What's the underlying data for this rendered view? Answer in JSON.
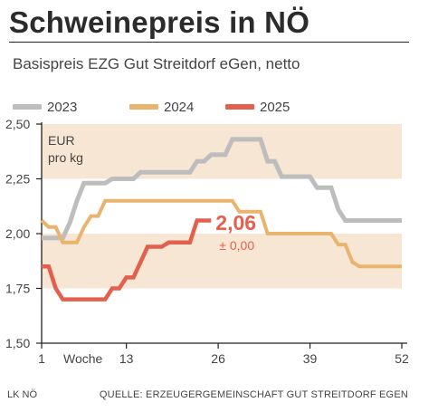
{
  "header": {
    "title": "Schweinepreis in NÖ",
    "subtitle": "Basispreis EZG Gut Streitdorf eGen, netto"
  },
  "footer": {
    "left": "LK NÖ",
    "right": "QUELLE: ERZEUGERGEMEINSCHAFT GUT STREITDORF EGEN"
  },
  "colors": {
    "band": "#f7e6d3",
    "series_2023": "#bdbdbd",
    "series_2024": "#e8b46e",
    "series_2025": "#e4604e",
    "axis": "#222222",
    "text": "#444444"
  },
  "chart_data": {
    "type": "line",
    "unit_label_line1": "EUR",
    "unit_label_line2": "pro kg",
    "xlabel": "Woche",
    "xlim": [
      1,
      52
    ],
    "ylim": [
      1.5,
      2.5
    ],
    "x_ticks": [
      1,
      13,
      26,
      39,
      52
    ],
    "x_tick_labels": [
      "1",
      "13",
      "26",
      "39",
      "52"
    ],
    "y_ticks": [
      1.5,
      1.75,
      2.0,
      2.25,
      2.5
    ],
    "y_tick_labels": [
      "1,50",
      "1,75",
      "2,00",
      "2,25",
      "2,50"
    ],
    "bands": [
      [
        2.25,
        2.5
      ],
      [
        1.75,
        2.0
      ]
    ],
    "legend_position": "top",
    "series": [
      {
        "name": "2023",
        "color": "#bdbdbd",
        "points": [
          [
            1,
            1.98
          ],
          [
            3,
            1.98
          ],
          [
            4,
            1.98
          ],
          [
            5,
            2.05
          ],
          [
            6,
            2.15
          ],
          [
            7,
            2.23
          ],
          [
            10,
            2.23
          ],
          [
            11,
            2.25
          ],
          [
            14,
            2.25
          ],
          [
            15,
            2.28
          ],
          [
            22,
            2.28
          ],
          [
            23,
            2.33
          ],
          [
            24,
            2.33
          ],
          [
            25,
            2.36
          ],
          [
            27,
            2.36
          ],
          [
            28,
            2.43
          ],
          [
            32,
            2.43
          ],
          [
            33,
            2.33
          ],
          [
            34,
            2.33
          ],
          [
            35,
            2.26
          ],
          [
            39,
            2.26
          ],
          [
            40,
            2.21
          ],
          [
            42,
            2.21
          ],
          [
            43,
            2.11
          ],
          [
            44,
            2.06
          ],
          [
            52,
            2.06
          ]
        ]
      },
      {
        "name": "2024",
        "color": "#e8b46e",
        "points": [
          [
            1,
            2.06
          ],
          [
            2,
            2.03
          ],
          [
            3,
            2.03
          ],
          [
            4,
            1.96
          ],
          [
            6,
            1.96
          ],
          [
            7,
            2.03
          ],
          [
            8,
            2.08
          ],
          [
            9,
            2.08
          ],
          [
            10,
            2.15
          ],
          [
            28,
            2.15
          ],
          [
            29,
            2.1
          ],
          [
            32,
            2.1
          ],
          [
            33,
            2.0
          ],
          [
            42,
            2.0
          ],
          [
            43,
            1.95
          ],
          [
            44,
            1.95
          ],
          [
            45,
            1.87
          ],
          [
            46,
            1.85
          ],
          [
            52,
            1.85
          ]
        ]
      },
      {
        "name": "2025",
        "color": "#e4604e",
        "points": [
          [
            1,
            1.85
          ],
          [
            2,
            1.85
          ],
          [
            3,
            1.75
          ],
          [
            4,
            1.7
          ],
          [
            10,
            1.7
          ],
          [
            11,
            1.75
          ],
          [
            12,
            1.75
          ],
          [
            13,
            1.8
          ],
          [
            14,
            1.8
          ],
          [
            15,
            1.87
          ],
          [
            16,
            1.94
          ],
          [
            18,
            1.94
          ],
          [
            19,
            1.96
          ],
          [
            22,
            1.96
          ],
          [
            23,
            2.06
          ],
          [
            25,
            2.06
          ]
        ]
      }
    ],
    "annotation": {
      "value_text": "2,06",
      "change_text": "± 0,00"
    }
  }
}
